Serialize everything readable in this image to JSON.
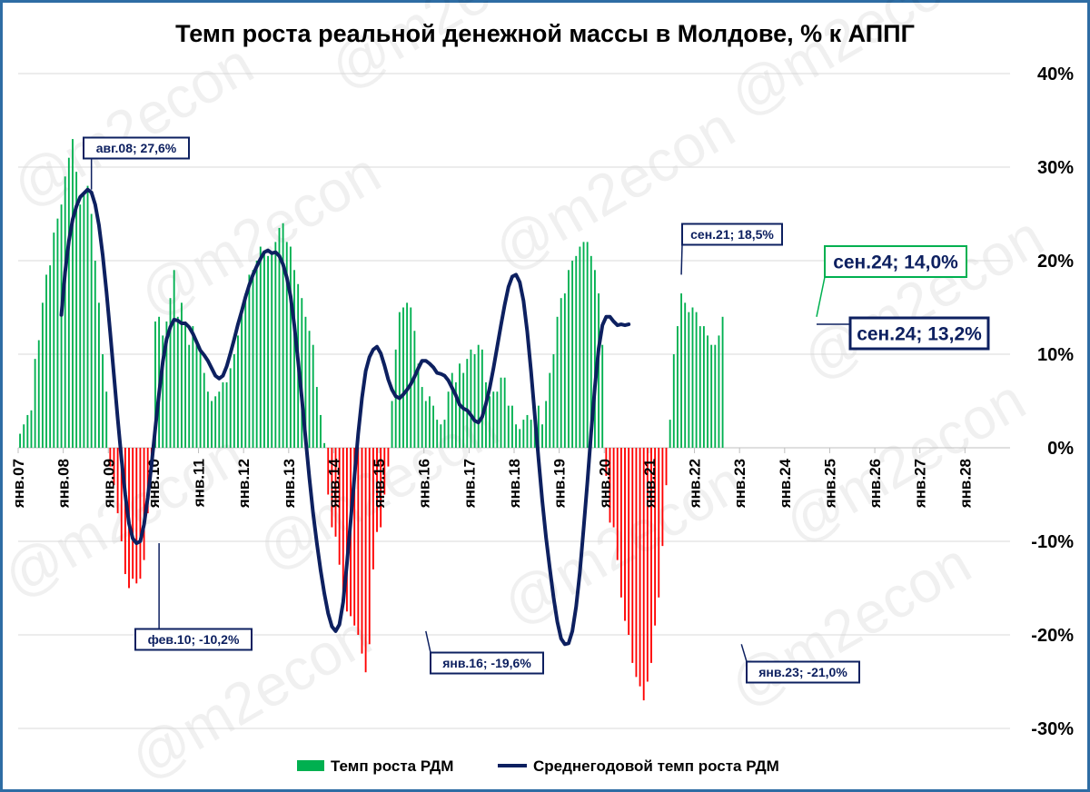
{
  "watermark": "@m2econ",
  "chart_data": {
    "type": "bar+line",
    "title": "Темп роста реальной денежной массы в Молдове, % к АППГ",
    "ylim": [
      -30,
      40
    ],
    "yticks": [
      "-30%",
      "-20%",
      "-10%",
      "0%",
      "10%",
      "20%",
      "30%",
      "40%"
    ],
    "ytick_values": [
      -30,
      -20,
      -10,
      0,
      10,
      20,
      30,
      40
    ],
    "xticks": [
      "янв.07",
      "янв.08",
      "янв.09",
      "янв.10",
      "янв.11",
      "янв.12",
      "янв.13",
      "янв.14",
      "янв.15",
      "янв.16",
      "янв.17",
      "янв.18",
      "янв.19",
      "янв.20",
      "янв.21",
      "янв.22",
      "янв.23",
      "янв.24",
      "янв.25",
      "янв.26",
      "янв.27",
      "янв.28"
    ],
    "x_start": "2007-01",
    "x_end": "2028-12",
    "grid": true,
    "legend_position": "bottom",
    "colors": {
      "positive_bar": "#00b050",
      "negative_bar": "#ff0000",
      "line": "#0d2060",
      "latest_bar_label": "#00b050"
    },
    "series": [
      {
        "name": "Темп роста РДМ",
        "type": "bar",
        "start": "2007-01",
        "values": [
          1.5,
          2.5,
          3.5,
          4.0,
          9.5,
          11.5,
          15.5,
          18.5,
          19.5,
          23.0,
          24.5,
          26.0,
          29.0,
          31.0,
          33.0,
          29.5,
          26.0,
          27.0,
          28.0,
          25.0,
          20.0,
          15.5,
          10.0,
          6.0,
          -2.0,
          -4.0,
          -7.0,
          -10.0,
          -13.5,
          -15.0,
          -14.0,
          -14.5,
          -14.0,
          -12.0,
          -7.0,
          -2.0,
          13.5,
          14.0,
          12.0,
          13.5,
          16.0,
          19.0,
          14.0,
          15.5,
          13.5,
          11.0,
          13.0,
          11.5,
          10.5,
          8.0,
          6.0,
          5.0,
          5.5,
          6.0,
          7.0,
          7.0,
          8.5,
          10.0,
          12.0,
          14.5,
          16.5,
          18.5,
          19.0,
          20.0,
          21.5,
          21.0,
          20.5,
          21.0,
          22.0,
          23.5,
          24.0,
          22.0,
          21.5,
          19.0,
          17.5,
          16.0,
          14.0,
          12.5,
          11.0,
          6.5,
          3.5,
          0.5,
          -5.0,
          -8.5,
          -9.5,
          -12.5,
          -16.0,
          -17.5,
          -18.0,
          -19.0,
          -20.0,
          -22.0,
          -24.0,
          -21.0,
          -13.0,
          -9.0,
          -8.5,
          -5.0,
          -2.0,
          5.0,
          10.5,
          14.5,
          15.0,
          15.5,
          15.0,
          12.5,
          9.0,
          6.5,
          5.0,
          5.5,
          4.5,
          3.0,
          2.5,
          3.0,
          6.0,
          8.0,
          7.0,
          9.0,
          8.0,
          9.5,
          10.5,
          10.0,
          11.0,
          10.5,
          7.0,
          5.5,
          6.0,
          6.0,
          7.5,
          7.5,
          4.5,
          4.5,
          2.5,
          2.0,
          3.0,
          3.5,
          3.0,
          3.5,
          4.5,
          2.5,
          5.0,
          8.0,
          10.0,
          14.0,
          16.0,
          16.5,
          19.0,
          20.0,
          20.5,
          21.5,
          22.0,
          22.0,
          20.5,
          19.0,
          16.5,
          11.0,
          -3.0,
          -8.0,
          -8.5,
          -12.0,
          -16.0,
          -18.5,
          -20.0,
          -23.0,
          -24.5,
          -25.5,
          -27.0,
          -25.0,
          -23.0,
          -19.0,
          -16.0,
          -10.5,
          -4.0,
          3.0,
          10.0,
          13.0,
          16.5,
          15.5,
          14.5,
          15.0,
          14.5,
          13.0,
          13.0,
          12.0,
          11.0,
          11.0,
          12.0,
          14.0
        ]
      },
      {
        "name": "Среднегодовой темп роста РДМ",
        "type": "line",
        "start": "2007-12",
        "values": [
          14.2,
          18.8,
          22.1,
          24.4,
          25.8,
          26.8,
          27.2,
          27.6,
          27.3,
          26.0,
          23.8,
          20.6,
          16.7,
          12.3,
          7.7,
          3.1,
          -1.2,
          -5.0,
          -8.1,
          -9.7,
          -10.2,
          -10.0,
          -8.2,
          -5.3,
          -1.8,
          2.1,
          5.8,
          9.2,
          11.6,
          12.9,
          13.7,
          13.6,
          13.3,
          13.3,
          12.9,
          12.2,
          11.3,
          10.4,
          9.9,
          9.3,
          8.5,
          7.7,
          7.4,
          7.7,
          8.7,
          10.1,
          11.6,
          13.2,
          14.6,
          16.1,
          17.4,
          18.5,
          19.4,
          20.2,
          20.9,
          21.1,
          20.8,
          20.9,
          20.5,
          19.6,
          18.2,
          16.2,
          13.1,
          9.3,
          5.3,
          1.0,
          -3.2,
          -7.0,
          -10.2,
          -13.1,
          -15.6,
          -17.7,
          -19.1,
          -19.6,
          -18.9,
          -16.5,
          -12.4,
          -7.8,
          -3.1,
          1.5,
          5.3,
          8.2,
          9.7,
          10.5,
          10.8,
          10.1,
          8.8,
          7.3,
          6.2,
          5.5,
          5.3,
          5.7,
          6.2,
          6.8,
          7.6,
          8.5,
          9.3,
          9.3,
          9.0,
          8.6,
          8.0,
          7.9,
          7.7,
          7.2,
          6.4,
          5.6,
          4.6,
          4.2,
          4.0,
          3.5,
          2.9,
          2.7,
          3.3,
          4.7,
          6.4,
          8.5,
          10.8,
          13.1,
          15.3,
          17.2,
          18.3,
          18.5,
          17.7,
          15.7,
          12.4,
          8.2,
          3.5,
          -1.2,
          -5.7,
          -9.6,
          -12.9,
          -16.0,
          -18.6,
          -20.4,
          -21.0,
          -20.9,
          -19.6,
          -17.0,
          -13.3,
          -8.6,
          -3.7,
          1.6,
          6.5,
          10.6,
          13.1,
          14.0,
          14.0,
          13.5,
          13.1,
          13.2,
          13.1,
          13.2
        ]
      }
    ],
    "annotations": [
      {
        "text": "авг.08; 27,6%",
        "date": "2008-08",
        "value": 27.6
      },
      {
        "text": "фев.10; -10,2%",
        "date": "2010-02",
        "value": -10.2
      },
      {
        "text": "янв.16; -19,6%",
        "date": "2016-01",
        "value": -19.6
      },
      {
        "text": "сен.21; 18,5%",
        "date": "2021-09",
        "value": 18.5
      },
      {
        "text": "янв.23; -21,0%",
        "date": "2023-01",
        "value": -21.0
      },
      {
        "text": "сен.24; 14,0%",
        "date": "2024-09",
        "value": 14.0
      },
      {
        "text": "сен.24; 13,2%",
        "date": "2024-09",
        "value": 13.2
      }
    ]
  }
}
